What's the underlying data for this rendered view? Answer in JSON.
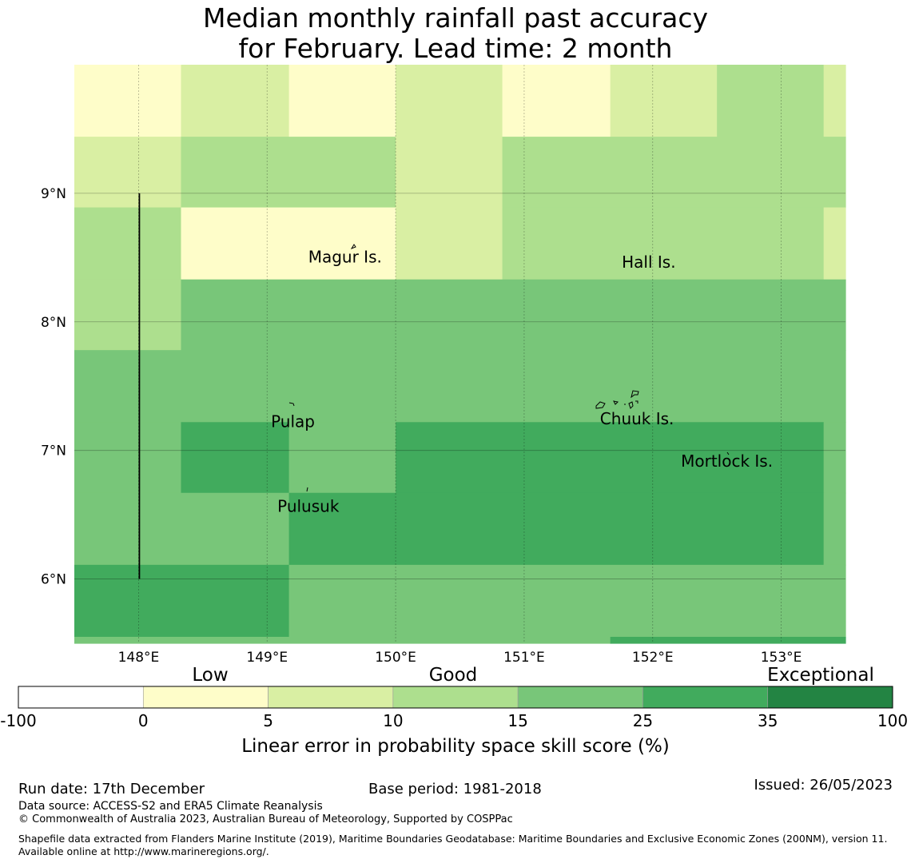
{
  "title_line1": "Median monthly rainfall past accuracy",
  "title_line2": "for February. Lead time: 2 month",
  "map": {
    "lon_labels": [
      "148°E",
      "149°E",
      "150°E",
      "151°E",
      "152°E",
      "153°E"
    ],
    "lat_labels": [
      "9°N",
      "8°N",
      "7°N",
      "6°N"
    ],
    "grid_lons": [
      148,
      149,
      150,
      151,
      152,
      153
    ],
    "grid_lats": [
      9,
      8,
      7,
      6
    ],
    "extent": {
      "lon_min": 147.5,
      "lon_max": 153.5,
      "lat_min": 5.5,
      "lat_max": 10.0
    },
    "cells": [
      {
        "lon0": 147.5,
        "lon1": 148.33,
        "lat0": 9.44,
        "lat1": 10.0,
        "skill": 3
      },
      {
        "lon0": 148.33,
        "lon1": 149.17,
        "lat0": 9.44,
        "lat1": 10.0,
        "skill": 7
      },
      {
        "lon0": 149.17,
        "lon1": 150.0,
        "lat0": 9.44,
        "lat1": 10.0,
        "skill": 3
      },
      {
        "lon0": 150.0,
        "lon1": 150.83,
        "lat0": 9.44,
        "lat1": 10.0,
        "skill": 7
      },
      {
        "lon0": 150.83,
        "lon1": 151.67,
        "lat0": 9.44,
        "lat1": 10.0,
        "skill": 3
      },
      {
        "lon0": 151.67,
        "lon1": 152.5,
        "lat0": 9.44,
        "lat1": 10.0,
        "skill": 7
      },
      {
        "lon0": 152.5,
        "lon1": 153.33,
        "lat0": 9.44,
        "lat1": 10.0,
        "skill": 12
      },
      {
        "lon0": 153.33,
        "lon1": 153.5,
        "lat0": 9.44,
        "lat1": 10.0,
        "skill": 7
      },
      {
        "lon0": 147.5,
        "lon1": 148.33,
        "lat0": 8.89,
        "lat1": 9.44,
        "skill": 7
      },
      {
        "lon0": 148.33,
        "lon1": 150.0,
        "lat0": 8.89,
        "lat1": 9.44,
        "skill": 12
      },
      {
        "lon0": 150.0,
        "lon1": 150.83,
        "lat0": 8.89,
        "lat1": 9.44,
        "skill": 7
      },
      {
        "lon0": 150.83,
        "lon1": 153.5,
        "lat0": 8.89,
        "lat1": 9.44,
        "skill": 12
      },
      {
        "lon0": 147.5,
        "lon1": 148.33,
        "lat0": 8.33,
        "lat1": 8.89,
        "skill": 12
      },
      {
        "lon0": 148.33,
        "lon1": 150.0,
        "lat0": 8.33,
        "lat1": 8.89,
        "skill": 3
      },
      {
        "lon0": 150.0,
        "lon1": 150.83,
        "lat0": 8.33,
        "lat1": 8.89,
        "skill": 7
      },
      {
        "lon0": 150.83,
        "lon1": 153.33,
        "lat0": 8.33,
        "lat1": 8.89,
        "skill": 12
      },
      {
        "lon0": 153.33,
        "lon1": 153.5,
        "lat0": 8.33,
        "lat1": 8.89,
        "skill": 7
      },
      {
        "lon0": 147.5,
        "lon1": 148.33,
        "lat0": 7.78,
        "lat1": 8.33,
        "skill": 12
      },
      {
        "lon0": 148.33,
        "lon1": 153.5,
        "lat0": 7.78,
        "lat1": 8.33,
        "skill": 20
      },
      {
        "lon0": 147.5,
        "lon1": 153.5,
        "lat0": 7.22,
        "lat1": 7.78,
        "skill": 20
      },
      {
        "lon0": 147.5,
        "lon1": 148.33,
        "lat0": 6.67,
        "lat1": 7.22,
        "skill": 20
      },
      {
        "lon0": 148.33,
        "lon1": 149.17,
        "lat0": 6.67,
        "lat1": 7.22,
        "skill": 30
      },
      {
        "lon0": 149.17,
        "lon1": 150.0,
        "lat0": 6.67,
        "lat1": 7.22,
        "skill": 20
      },
      {
        "lon0": 150.0,
        "lon1": 153.33,
        "lat0": 6.67,
        "lat1": 7.22,
        "skill": 30
      },
      {
        "lon0": 153.33,
        "lon1": 153.5,
        "lat0": 6.67,
        "lat1": 7.22,
        "skill": 20
      },
      {
        "lon0": 147.5,
        "lon1": 149.17,
        "lat0": 6.11,
        "lat1": 6.67,
        "skill": 20
      },
      {
        "lon0": 149.17,
        "lon1": 153.33,
        "lat0": 6.11,
        "lat1": 6.67,
        "skill": 30
      },
      {
        "lon0": 153.33,
        "lon1": 153.5,
        "lat0": 6.11,
        "lat1": 6.67,
        "skill": 20
      },
      {
        "lon0": 147.5,
        "lon1": 149.17,
        "lat0": 5.55,
        "lat1": 6.11,
        "skill": 30
      },
      {
        "lon0": 149.17,
        "lon1": 153.5,
        "lat0": 5.55,
        "lat1": 6.11,
        "skill": 20
      },
      {
        "lon0": 147.5,
        "lon1": 151.67,
        "lat0": 5.5,
        "lat1": 5.55,
        "skill": 20
      },
      {
        "lon0": 151.67,
        "lon1": 153.5,
        "lat0": 5.5,
        "lat1": 5.55,
        "skill": 30
      }
    ],
    "places": [
      {
        "name": "Magur Is.",
        "lon": 149.32,
        "lat": 8.5
      },
      {
        "name": "Hall Is.",
        "lon": 151.76,
        "lat": 8.46
      },
      {
        "name": "Pulap",
        "lon": 149.03,
        "lat": 7.22
      },
      {
        "name": "Chuuk Is.",
        "lon": 151.59,
        "lat": 7.24
      },
      {
        "name": "Mortlock Is.",
        "lon": 152.22,
        "lat": 6.91
      },
      {
        "name": "Pulusuk",
        "lon": 149.08,
        "lat": 6.56
      }
    ],
    "boundary_line": {
      "lon": 148.0,
      "lat_from": 9.0,
      "lat_to": 6.0
    }
  },
  "legend": {
    "categories": [
      "Low",
      "Good",
      "Exceptional"
    ],
    "tick_labels": [
      "-100",
      "0",
      "5",
      "10",
      "15",
      "25",
      "35",
      "100"
    ],
    "bins": [
      {
        "from": -100,
        "to": 0,
        "color": "#ffffff"
      },
      {
        "from": 0,
        "to": 5,
        "color": "#fefdc9"
      },
      {
        "from": 5,
        "to": 10,
        "color": "#d9efa3"
      },
      {
        "from": 10,
        "to": 15,
        "color": "#addf8e"
      },
      {
        "from": 15,
        "to": 25,
        "color": "#78c679"
      },
      {
        "from": 25,
        "to": 35,
        "color": "#41ab5d"
      },
      {
        "from": 35,
        "to": 100,
        "color": "#238443"
      }
    ],
    "label": "Linear error in probability space skill score (%)"
  },
  "footer": {
    "run_date": "Run date: 17th December",
    "base_period": "Base period: 1981-2018",
    "issued": "Issued: 26/05/2023",
    "data_source": "Data source: ACCESS-S2 and ERA5 Climate Reanalysis",
    "copyright": "© Commonwealth of Australia 2023, Australian Bureau of Meteorology, Supported by COSPPac",
    "shapefile": "Shapefile data extracted from Flanders Marine Institute (2019), Maritime Boundaries Geodatabase: Maritime Boundaries and Exclusive Economic Zones (200NM), version 11. Available online at http://www.marineregions.org/."
  }
}
